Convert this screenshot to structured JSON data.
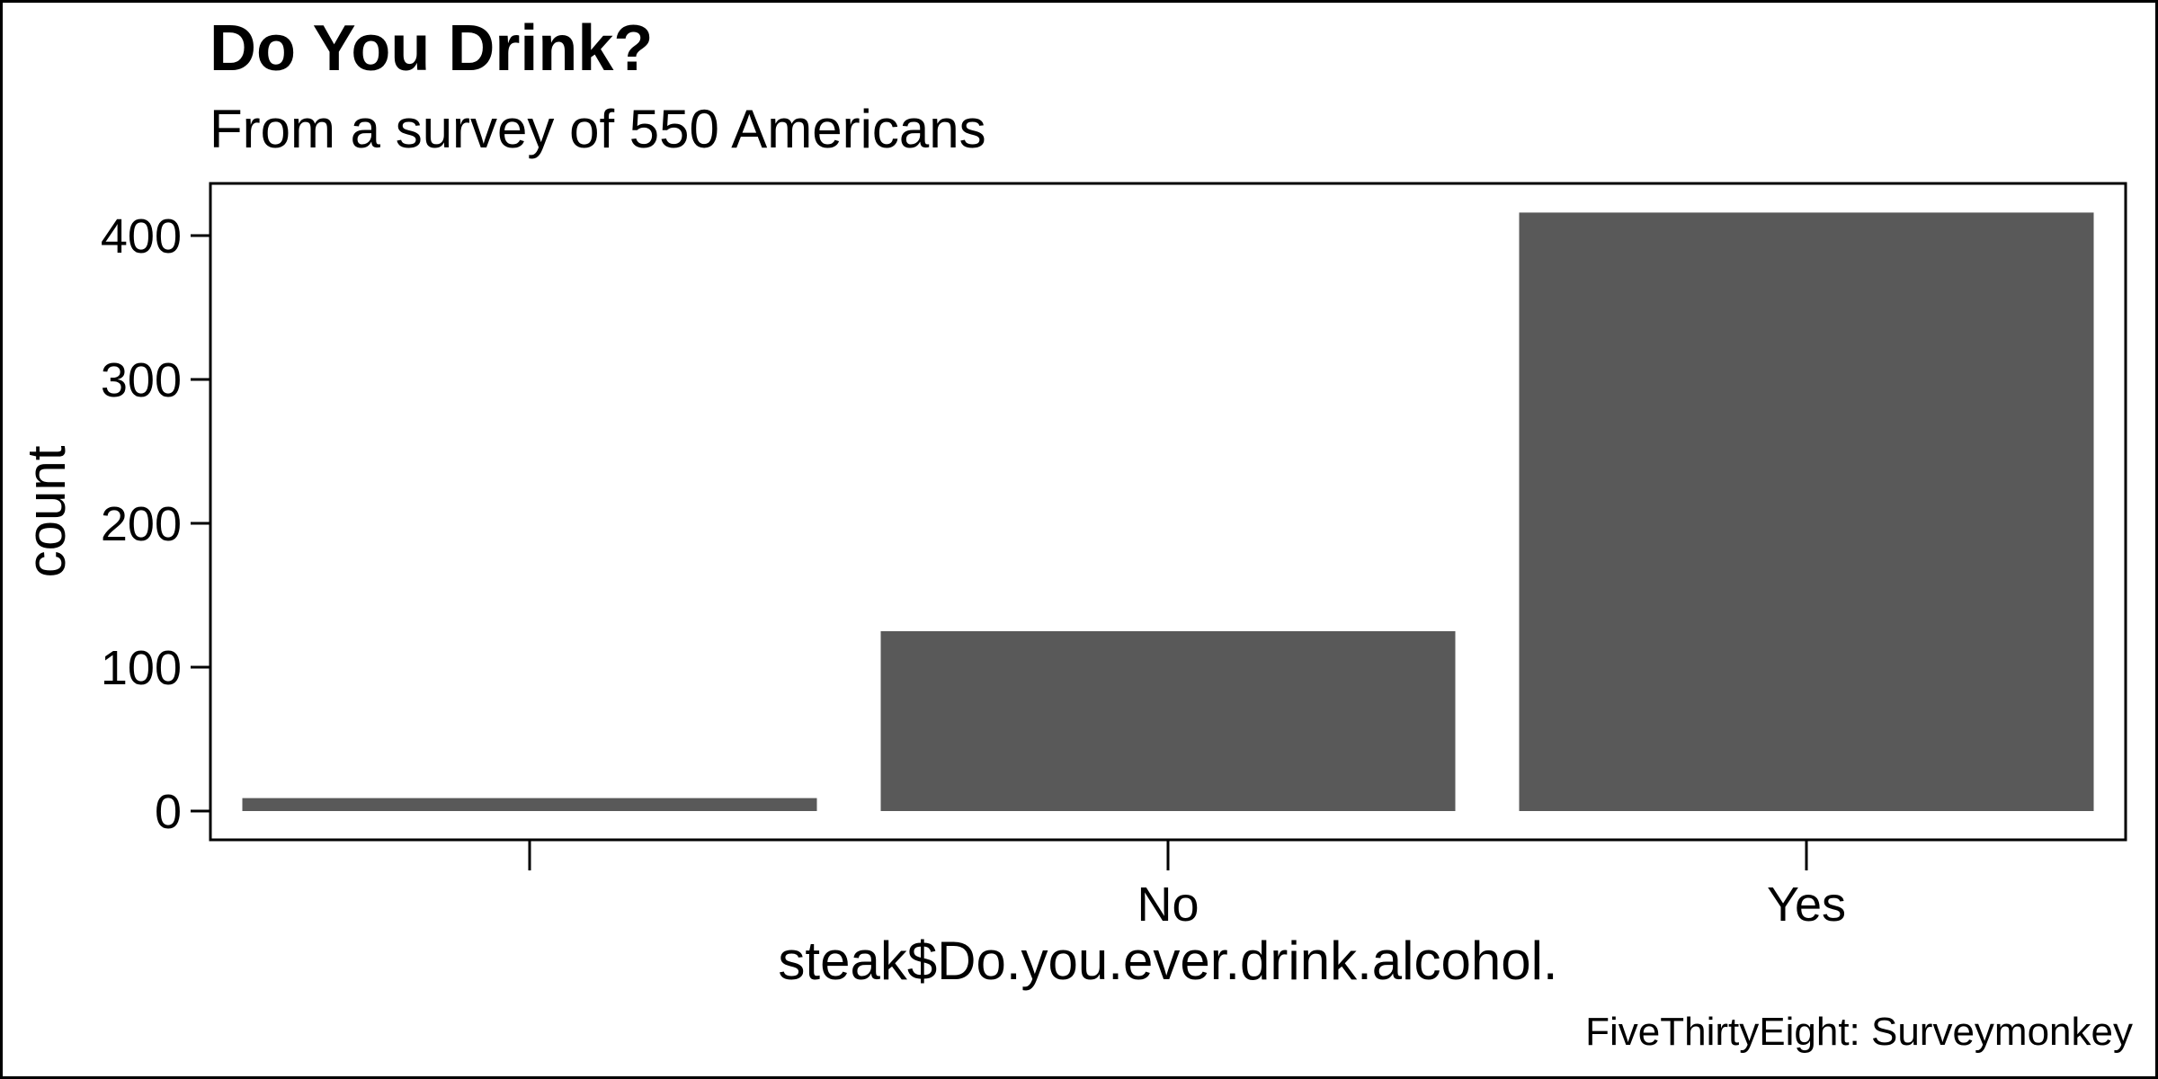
{
  "chart_data": {
    "type": "bar",
    "title": "Do You Drink?",
    "subtitle": "From a survey of 550 Americans",
    "caption": "FiveThirtyEight: Surveymonkey",
    "xlabel": "steak$Do.you.ever.drink.alcohol.",
    "ylabel": "count",
    "categories": [
      "",
      "No",
      "Yes"
    ],
    "values": [
      9,
      125,
      416
    ],
    "ylim": [
      -20,
      437
    ],
    "yticks": [
      0,
      100,
      200,
      300,
      400
    ],
    "bar_color": "#595959",
    "grid": false,
    "legend": "none"
  }
}
